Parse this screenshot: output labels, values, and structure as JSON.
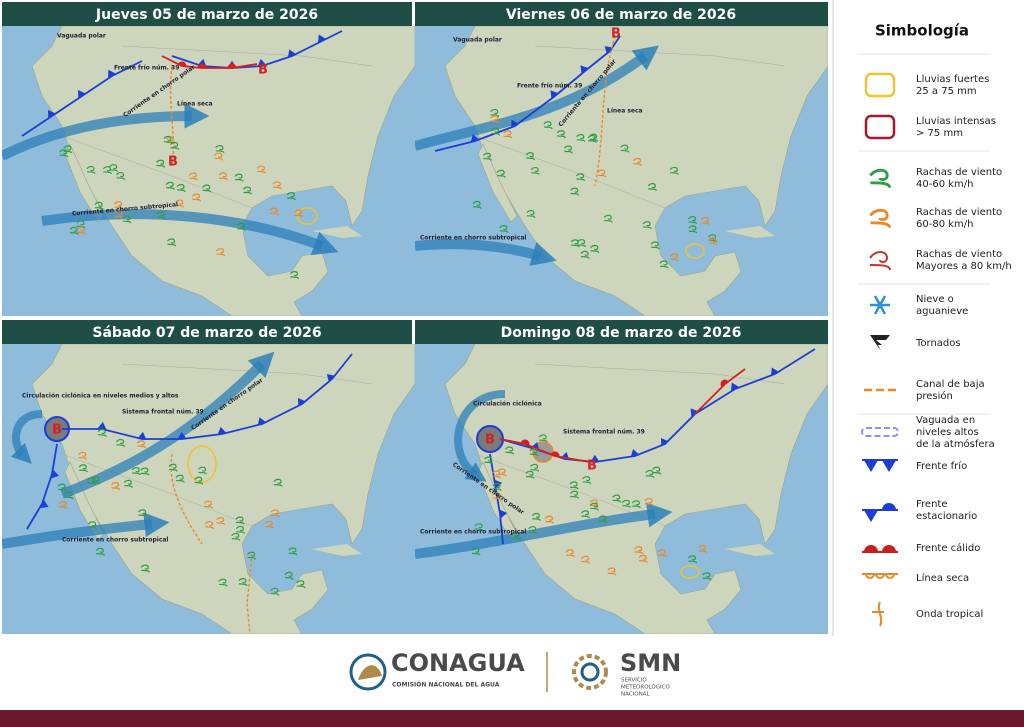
{
  "panels": [
    {
      "title": "Jueves 05 de marzo de 2026",
      "labels": [
        "Vaguada polar",
        "Frente frío núm. 39",
        "Corriente en chorro polar",
        "Línea seca",
        "Corriente en chorro subtropical",
        "B",
        "B"
      ]
    },
    {
      "title": "Viernes 06 de marzo de 2026",
      "labels": [
        "Vaguada polar",
        "Frente frío núm. 39",
        "Corriente en chorro polar",
        "Línea seca",
        "Corriente en chorro subtropical",
        "B"
      ]
    },
    {
      "title": "Sábado 07 de marzo de 2026",
      "labels": [
        "Circulación ciclónica en niveles medios y altos",
        "Sistema frontal núm. 39",
        "Corriente en chorro polar",
        "Corriente en chorro subtropical",
        "B"
      ]
    },
    {
      "title": "Domingo 08 de marzo de 2026",
      "labels": [
        "Circulación ciclónica",
        "Sistema frontal núm. 39",
        "Corriente en chorro polar",
        "Corriente en chorro subtropical",
        "B",
        "B"
      ]
    }
  ],
  "legend": {
    "title": "Simbología",
    "items": [
      {
        "lines": [
          "Lluvias fuertes",
          "25 a 75 mm"
        ]
      },
      {
        "lines": [
          "Lluvias intensas",
          "> 75 mm"
        ]
      },
      {
        "lines": [
          "Rachas de viento",
          "40-60 km/h"
        ]
      },
      {
        "lines": [
          "Rachas de viento",
          "60-80 km/h"
        ]
      },
      {
        "lines": [
          "Rachas de viento",
          "Mayores a 80 km/h"
        ]
      },
      {
        "lines": [
          "Nieve o",
          "aguanieve"
        ]
      },
      {
        "lines": [
          "Tornados"
        ]
      },
      {
        "lines": [
          "Canal de baja",
          "presión"
        ]
      },
      {
        "lines": [
          "Vaguada en",
          "niveles altos",
          "de la atmósfera"
        ]
      },
      {
        "lines": [
          "Frente frío"
        ]
      },
      {
        "lines": [
          "Frente",
          "estacionario"
        ]
      },
      {
        "lines": [
          "Frente cálido"
        ]
      },
      {
        "lines": [
          "Línea seca"
        ]
      },
      {
        "lines": [
          "Onda tropical"
        ]
      }
    ]
  },
  "footer": {
    "conagua": "CONAGUA",
    "conagua_sub": "COMISIÓN NACIONAL DEL AGUA",
    "smn": "SMN",
    "smn_sub": [
      "SERVICIO",
      "METEOROLÓGICO",
      "NACIONAL"
    ]
  }
}
